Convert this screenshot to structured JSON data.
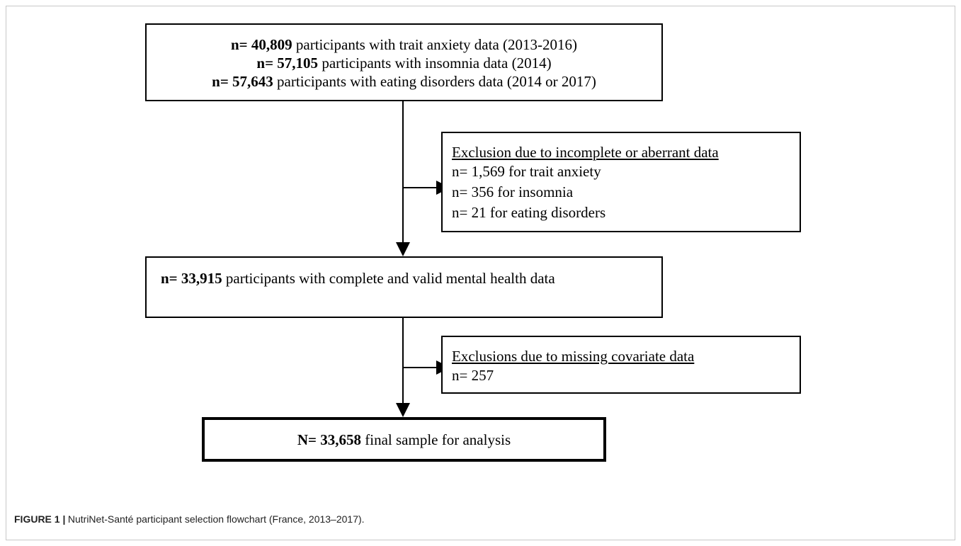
{
  "start_box": {
    "lines": [
      {
        "bold": "n= 40,809",
        "text": "participants with trait anxiety data (2013-2016)"
      },
      {
        "bold": "n= 57,105",
        "text": "participants with insomnia data (2014)"
      },
      {
        "bold": "n= 57,643",
        "text": "participants with eating disorders data (2014 or 2017)"
      }
    ]
  },
  "exclusion_1": {
    "heading": "Exclusion due to incomplete or aberrant data",
    "lines": [
      "n= 1,569 for trait anxiety",
      "n= 356 for insomnia",
      "n= 21 for eating disorders"
    ]
  },
  "mental_health_box": {
    "bold": "n= 33,915",
    "text": "participants with complete and valid mental health data"
  },
  "exclusion_2": {
    "heading": "Exclusions due to missing covariate data",
    "lines": [
      "n= 257"
    ]
  },
  "final_box": {
    "bold": "N= 33,658",
    "text": "final sample for analysis"
  },
  "caption": {
    "label": "FIGURE 1 |",
    "text": "NutriNet-Santé participant selection flowchart (France, 2013–2017)."
  }
}
